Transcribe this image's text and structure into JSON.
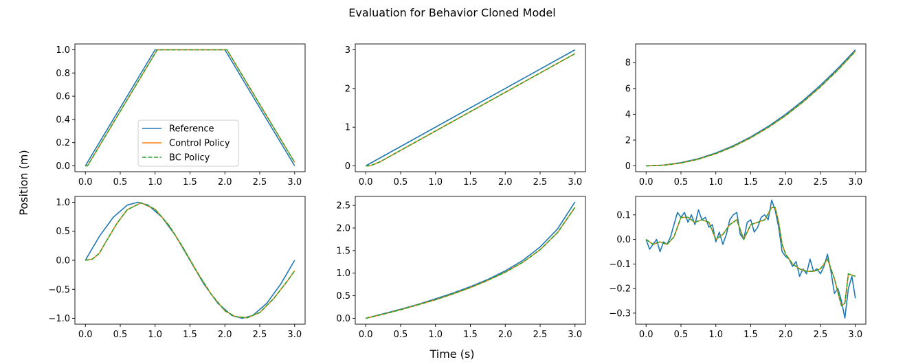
{
  "figure": {
    "title": "Evaluation for Behavior Cloned Model",
    "xlabel": "Time (s)",
    "ylabel": "Position (m)",
    "colors": {
      "reference": "#1f77b4",
      "control": "#ff7f0e",
      "bc": "#2ca02c"
    },
    "legend": {
      "placement": "lower-center of first subplot",
      "entries": [
        "Reference",
        "Control Policy",
        "BC Policy"
      ]
    }
  },
  "chart_data": [
    {
      "type": "line",
      "panel": "trapezoid",
      "xlim": [
        -0.15,
        3.15
      ],
      "ylim": [
        -0.05,
        1.05
      ],
      "xticks": [
        0.0,
        0.5,
        1.0,
        1.5,
        2.0,
        2.5,
        3.0
      ],
      "yticks": [
        0.0,
        0.2,
        0.4,
        0.6,
        0.8,
        1.0
      ],
      "tick_decimals": 1,
      "series": [
        {
          "name": "Reference",
          "x": [
            0,
            1,
            2,
            3
          ],
          "y": [
            0,
            1,
            1,
            0
          ]
        },
        {
          "name": "Control Policy",
          "x": [
            0,
            0.03,
            1.03,
            2.03,
            3.0
          ],
          "y": [
            0,
            0,
            1,
            1,
            0.03
          ]
        },
        {
          "name": "BC Policy",
          "x": [
            0,
            0.03,
            1.03,
            2.03,
            3.0
          ],
          "y": [
            0,
            0,
            1,
            1,
            0.03
          ]
        }
      ]
    },
    {
      "type": "line",
      "panel": "linear",
      "xlim": [
        -0.15,
        3.15
      ],
      "ylim": [
        -0.15,
        3.15
      ],
      "xticks": [
        0.0,
        0.5,
        1.0,
        1.5,
        2.0,
        2.5,
        3.0
      ],
      "yticks": [
        0,
        1,
        2,
        3
      ],
      "tick_decimals": 0,
      "series": [
        {
          "name": "Reference",
          "x": [
            0,
            3
          ],
          "y": [
            0,
            3
          ]
        },
        {
          "name": "Control Policy",
          "x": [
            0,
            0.05,
            0.1,
            0.2,
            0.4,
            3.0
          ],
          "y": [
            0,
            0.0,
            0.03,
            0.1,
            0.3,
            2.9
          ]
        },
        {
          "name": "BC Policy",
          "x": [
            0,
            0.05,
            0.1,
            0.2,
            0.4,
            3.0
          ],
          "y": [
            0,
            0.0,
            0.03,
            0.1,
            0.3,
            2.9
          ]
        }
      ]
    },
    {
      "type": "line",
      "panel": "quadratic",
      "xlim": [
        -0.15,
        3.15
      ],
      "ylim": [
        -0.45,
        9.45
      ],
      "xticks": [
        0.0,
        0.5,
        1.0,
        1.5,
        2.0,
        2.5,
        3.0
      ],
      "yticks": [
        0,
        2,
        4,
        6,
        8
      ],
      "tick_decimals": 0,
      "series": [
        {
          "name": "Reference",
          "x": [
            0,
            0.25,
            0.5,
            0.75,
            1.0,
            1.25,
            1.5,
            1.75,
            2.0,
            2.25,
            2.5,
            2.75,
            3.0
          ],
          "y": [
            0,
            0.06,
            0.25,
            0.56,
            1.0,
            1.56,
            2.25,
            3.06,
            4.0,
            5.06,
            6.25,
            7.56,
            9.0
          ]
        },
        {
          "name": "Control Policy",
          "x": [
            0,
            0.25,
            0.5,
            0.75,
            1.0,
            1.25,
            1.5,
            1.75,
            2.0,
            2.25,
            2.5,
            2.75,
            3.0
          ],
          "y": [
            0,
            0.05,
            0.22,
            0.52,
            0.95,
            1.5,
            2.18,
            2.98,
            3.9,
            4.95,
            6.13,
            7.44,
            8.88
          ]
        },
        {
          "name": "BC Policy",
          "x": [
            0,
            0.25,
            0.5,
            0.75,
            1.0,
            1.25,
            1.5,
            1.75,
            2.0,
            2.25,
            2.5,
            2.75,
            3.0
          ],
          "y": [
            0,
            0.05,
            0.22,
            0.52,
            0.95,
            1.5,
            2.18,
            2.98,
            3.9,
            4.95,
            6.13,
            7.44,
            8.88
          ]
        }
      ]
    },
    {
      "type": "line",
      "panel": "sine",
      "xlim": [
        -0.15,
        3.15
      ],
      "ylim": [
        -1.1,
        1.1
      ],
      "xticks": [
        0.0,
        0.5,
        1.0,
        1.5,
        2.0,
        2.5,
        3.0
      ],
      "yticks": [
        -1.0,
        -0.5,
        0.0,
        0.5,
        1.0
      ],
      "tick_decimals": 1,
      "series": [
        {
          "name": "Reference",
          "x": [
            0,
            0.2,
            0.4,
            0.6,
            0.75,
            0.9,
            1.1,
            1.3,
            1.5,
            1.7,
            1.9,
            2.1,
            2.25,
            2.4,
            2.6,
            2.8,
            3.0
          ],
          "y": [
            0,
            0.41,
            0.74,
            0.95,
            1.0,
            0.95,
            0.74,
            0.41,
            0.0,
            -0.41,
            -0.74,
            -0.95,
            -1.0,
            -0.95,
            -0.74,
            -0.41,
            0.0
          ]
        },
        {
          "name": "Control Policy",
          "x": [
            0,
            0.1,
            0.2,
            0.3,
            0.45,
            0.6,
            0.8,
            1.0,
            1.2,
            1.4,
            1.6,
            1.8,
            2.0,
            2.15,
            2.32,
            2.5,
            2.7,
            2.9,
            3.0
          ],
          "y": [
            0,
            0.02,
            0.12,
            0.33,
            0.63,
            0.87,
            0.99,
            0.88,
            0.6,
            0.22,
            -0.2,
            -0.58,
            -0.87,
            -0.97,
            -0.99,
            -0.9,
            -0.66,
            -0.35,
            -0.18
          ]
        },
        {
          "name": "BC Policy",
          "x": [
            0,
            0.1,
            0.2,
            0.3,
            0.45,
            0.6,
            0.8,
            1.0,
            1.2,
            1.4,
            1.6,
            1.8,
            2.0,
            2.15,
            2.32,
            2.5,
            2.7,
            2.9,
            3.0
          ],
          "y": [
            0,
            0.02,
            0.12,
            0.33,
            0.63,
            0.87,
            0.99,
            0.88,
            0.6,
            0.22,
            -0.2,
            -0.58,
            -0.87,
            -0.97,
            -0.99,
            -0.9,
            -0.66,
            -0.35,
            -0.18
          ]
        }
      ]
    },
    {
      "type": "line",
      "panel": "exponential",
      "xlim": [
        -0.15,
        3.15
      ],
      "ylim": [
        -0.13,
        2.7
      ],
      "xticks": [
        0.0,
        0.5,
        1.0,
        1.5,
        2.0,
        2.5,
        3.0
      ],
      "yticks": [
        0.0,
        0.5,
        1.0,
        1.5,
        2.0,
        2.5
      ],
      "tick_decimals": 1,
      "series": [
        {
          "name": "Reference",
          "x": [
            0,
            0.25,
            0.5,
            0.75,
            1.0,
            1.25,
            1.5,
            1.75,
            2.0,
            2.25,
            2.5,
            2.75,
            3.0
          ],
          "y": [
            0,
            0.1,
            0.2,
            0.31,
            0.43,
            0.56,
            0.7,
            0.86,
            1.05,
            1.28,
            1.58,
            1.98,
            2.58
          ]
        },
        {
          "name": "Control Policy",
          "x": [
            0,
            0.25,
            0.5,
            0.75,
            1.0,
            1.25,
            1.5,
            1.75,
            2.0,
            2.25,
            2.5,
            2.75,
            3.0
          ],
          "y": [
            0,
            0.09,
            0.19,
            0.3,
            0.41,
            0.54,
            0.68,
            0.84,
            1.02,
            1.24,
            1.52,
            1.9,
            2.46
          ]
        },
        {
          "name": "BC Policy",
          "x": [
            0,
            0.25,
            0.5,
            0.75,
            1.0,
            1.25,
            1.5,
            1.75,
            2.0,
            2.25,
            2.5,
            2.75,
            3.0
          ],
          "y": [
            0,
            0.09,
            0.19,
            0.3,
            0.41,
            0.54,
            0.68,
            0.84,
            1.02,
            1.24,
            1.52,
            1.9,
            2.46
          ]
        }
      ]
    },
    {
      "type": "line",
      "panel": "random-walk",
      "xlim": [
        -0.15,
        3.15
      ],
      "ylim": [
        -0.345,
        0.175
      ],
      "xticks": [
        0.0,
        0.5,
        1.0,
        1.5,
        2.0,
        2.5,
        3.0
      ],
      "yticks": [
        -0.3,
        -0.2,
        -0.1,
        0.0,
        0.1
      ],
      "tick_decimals": 1,
      "series": [
        {
          "name": "Reference",
          "x": [
            0,
            0.05,
            0.1,
            0.15,
            0.2,
            0.25,
            0.3,
            0.35,
            0.4,
            0.45,
            0.5,
            0.55,
            0.6,
            0.65,
            0.7,
            0.75,
            0.8,
            0.85,
            0.9,
            0.95,
            1.0,
            1.05,
            1.1,
            1.15,
            1.2,
            1.25,
            1.3,
            1.35,
            1.4,
            1.45,
            1.5,
            1.55,
            1.6,
            1.65,
            1.7,
            1.75,
            1.8,
            1.85,
            1.9,
            1.95,
            2.0,
            2.05,
            2.1,
            2.15,
            2.2,
            2.25,
            2.3,
            2.35,
            2.4,
            2.45,
            2.5,
            2.55,
            2.6,
            2.65,
            2.7,
            2.75,
            2.8,
            2.85,
            2.9,
            2.95,
            3.0
          ],
          "y": [
            0.0,
            -0.04,
            -0.02,
            0.0,
            -0.05,
            -0.01,
            -0.02,
            0.01,
            0.06,
            0.11,
            0.09,
            0.11,
            0.07,
            0.1,
            0.06,
            0.12,
            0.08,
            0.09,
            0.05,
            0.06,
            -0.01,
            0.03,
            -0.02,
            0.02,
            0.08,
            0.1,
            0.11,
            0.02,
            0.0,
            0.07,
            0.08,
            0.03,
            0.05,
            0.09,
            0.1,
            0.08,
            0.16,
            0.12,
            0.05,
            -0.05,
            -0.07,
            -0.08,
            -0.11,
            -0.09,
            -0.15,
            -0.12,
            -0.14,
            -0.08,
            -0.13,
            -0.12,
            -0.14,
            -0.11,
            -0.06,
            -0.13,
            -0.22,
            -0.2,
            -0.25,
            -0.32,
            -0.2,
            -0.15,
            -0.24
          ]
        },
        {
          "name": "Control Policy",
          "x": [
            0,
            0.1,
            0.2,
            0.3,
            0.4,
            0.5,
            0.6,
            0.7,
            0.8,
            0.9,
            1.0,
            1.1,
            1.2,
            1.3,
            1.4,
            1.5,
            1.6,
            1.7,
            1.8,
            1.85,
            1.9,
            1.95,
            2.0,
            2.1,
            2.2,
            2.3,
            2.4,
            2.5,
            2.6,
            2.7,
            2.8,
            2.85,
            2.9,
            3.0
          ],
          "y": [
            0.0,
            -0.02,
            -0.01,
            -0.02,
            0.01,
            0.09,
            0.09,
            0.07,
            0.08,
            0.07,
            0.0,
            0.02,
            0.06,
            0.08,
            0.0,
            0.06,
            0.07,
            0.08,
            0.13,
            0.13,
            0.07,
            -0.02,
            -0.06,
            -0.1,
            -0.12,
            -0.13,
            -0.13,
            -0.12,
            -0.08,
            -0.16,
            -0.27,
            -0.26,
            -0.14,
            -0.15
          ]
        },
        {
          "name": "BC Policy",
          "x": [
            0,
            0.1,
            0.2,
            0.3,
            0.4,
            0.5,
            0.6,
            0.7,
            0.8,
            0.9,
            1.0,
            1.1,
            1.2,
            1.3,
            1.4,
            1.5,
            1.6,
            1.7,
            1.8,
            1.85,
            1.9,
            1.95,
            2.0,
            2.1,
            2.2,
            2.3,
            2.4,
            2.5,
            2.6,
            2.7,
            2.8,
            2.85,
            2.9,
            3.0
          ],
          "y": [
            0.0,
            -0.02,
            -0.01,
            -0.02,
            0.01,
            0.09,
            0.09,
            0.07,
            0.08,
            0.07,
            0.0,
            0.02,
            0.06,
            0.08,
            0.0,
            0.06,
            0.07,
            0.08,
            0.13,
            0.13,
            0.07,
            -0.02,
            -0.06,
            -0.1,
            -0.12,
            -0.13,
            -0.13,
            -0.12,
            -0.08,
            -0.16,
            -0.27,
            -0.26,
            -0.14,
            -0.15
          ]
        }
      ]
    }
  ]
}
